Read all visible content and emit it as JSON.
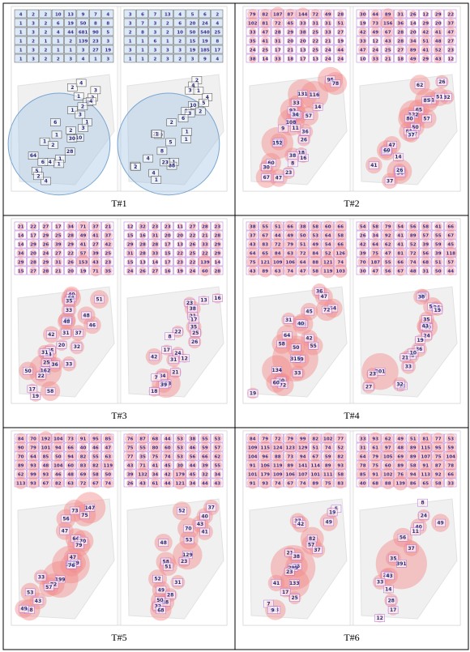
{
  "panels": [
    {
      "caption": "T#1",
      "color": "#9fc3e6",
      "maps": [
        {
          "table": [
            [
              4,
              2,
              2,
              10,
              13,
              9,
              7,
              4
            ],
            [
              1,
              3,
              2,
              6,
              19,
              50,
              8,
              8
            ],
            [
              1,
              3,
              2,
              4,
              44,
              681,
              90,
              5
            ],
            [
              1,
              2,
              1,
              1,
              2,
              139,
              23,
              3
            ],
            [
              1,
              3,
              2,
              1,
              1,
              3,
              27,
              19
            ],
            [
              1,
              3,
              2,
              2,
              3,
              4,
              1,
              3
            ]
          ],
          "labels": [
            2,
            4,
            3,
            1,
            2,
            8,
            4,
            1,
            2,
            3,
            1,
            6,
            3,
            2,
            10,
            1,
            30,
            1,
            2,
            28,
            1,
            64,
            4,
            6,
            1,
            5,
            4,
            2
          ]
        },
        {
          "table": [
            [
              3,
              6,
              7,
              13,
              4,
              5,
              6,
              2
            ],
            [
              3,
              7,
              3,
              2,
              6,
              20,
              24,
              4
            ],
            [
              2,
              8,
              3,
              2,
              10,
              50,
              540,
              25
            ],
            [
              1,
              1,
              6,
              1,
              2,
              15,
              19,
              8
            ],
            [
              3,
              1,
              3,
              3,
              3,
              19,
              185,
              17
            ],
            [
              1,
              1,
              2,
              3,
              2,
              3,
              9,
              4
            ]
          ],
          "labels": [
            2,
            4,
            3,
            1,
            4,
            5,
            10,
            1,
            2,
            3,
            6,
            2,
            1,
            30,
            28,
            1,
            1,
            5,
            8,
            4,
            1,
            88,
            23,
            5,
            2,
            4,
            1
          ]
        }
      ]
    },
    {
      "caption": "T#2",
      "color": "#f58a8a",
      "maps": [
        {
          "table": [
            [
              79,
              82,
              187,
              87,
              144,
              72,
              49,
              28
            ],
            [
              102,
              81,
              72,
              45,
              33,
              31,
              31,
              51
            ],
            [
              33,
              47,
              28,
              29,
              38,
              25,
              33,
              27
            ],
            [
              35,
              41,
              31,
              20,
              20,
              22,
              21,
              19
            ],
            [
              24,
              25,
              17,
              21,
              13,
              25,
              24,
              44
            ],
            [
              38,
              14,
              33,
              18,
              17,
              13,
              24,
              24
            ]
          ],
          "labels": [
            95,
            78,
            116,
            131,
            33,
            14,
            92,
            62,
            57,
            34,
            108,
            9,
            36,
            11,
            44,
            152,
            26,
            18,
            16,
            38,
            60,
            8,
            30,
            23,
            67,
            47
          ]
        },
        {
          "table": [
            [
              30,
              44,
              89,
              31,
              26,
              12,
              29,
              22
            ],
            [
              19,
              73,
              156,
              36,
              14,
              29,
              20,
              37
            ],
            [
              42,
              49,
              67,
              28,
              20,
              42,
              41,
              47
            ],
            [
              33,
              12,
              43,
              28,
              34,
              51,
              48,
              27
            ],
            [
              47,
              24,
              25,
              27,
              89,
              41,
              52,
              23
            ],
            [
              10,
              33,
              21,
              18,
              49,
              29,
              43,
              12
            ]
          ],
          "labels": [
            26,
            62,
            32,
            41,
            51,
            85,
            65,
            57,
            122,
            80,
            50,
            61,
            17,
            37,
            47,
            30,
            60,
            14,
            41,
            93,
            36,
            26,
            37
          ]
        }
      ]
    },
    {
      "caption": "T#3",
      "color": "#f58a8a",
      "maps": [
        {
          "table": [
            [
              21,
              22,
              27,
              17,
              34,
              71,
              37,
              21
            ],
            [
              14,
              17,
              29,
              25,
              28,
              49,
              41,
              37
            ],
            [
              14,
              29,
              26,
              39,
              29,
              41,
              27,
              42
            ],
            [
              34,
              20,
              24,
              27,
              22,
              57,
              39,
              25
            ],
            [
              29,
              28,
              29,
              31,
              26,
              153,
              43,
              23
            ],
            [
              15,
              27,
              28,
              21,
              20,
              19,
              71,
              35
            ]
          ],
          "labels": [
            51,
            40,
            58,
            35,
            48,
            33,
            45,
            48,
            46,
            37,
            31,
            42,
            32,
            25,
            20,
            44,
            31,
            25,
            36,
            33,
            162,
            50,
            22,
            17,
            58,
            19
          ]
        },
        {
          "table": [
            [
              12,
              32,
              23,
              23,
              11,
              27,
              28,
              23
            ],
            [
              15,
              16,
              31,
              20,
              20,
              22,
              21,
              28
            ],
            [
              29,
              28,
              28,
              17,
              13,
              26,
              33,
              29
            ],
            [
              31,
              28,
              33,
              15,
              22,
              25,
              22,
              29
            ],
            [
              15,
              13,
              14,
              17,
              23,
              22,
              139,
              14
            ],
            [
              24,
              26,
              27,
              16,
              19,
              24,
              60,
              28
            ]
          ],
          "labels": [
            16,
            13,
            23,
            38,
            21,
            17,
            35,
            25,
            22,
            26,
            8,
            17,
            24,
            12,
            42,
            31,
            21,
            34,
            7,
            123,
            39,
            18
          ]
        }
      ]
    },
    {
      "caption": "T#4",
      "color": "#f58a8a",
      "maps": [
        {
          "table": [
            [
              38,
              55,
              51,
              66,
              38,
              58,
              60,
              66
            ],
            [
              37,
              67,
              44,
              49,
              50,
              53,
              64,
              58
            ],
            [
              43,
              83,
              72,
              79,
              51,
              49,
              54,
              66
            ],
            [
              64,
              65,
              84,
              63,
              72,
              84,
              52,
              126
            ],
            [
              75,
              121,
              109,
              106,
              64,
              88,
              121,
              74
            ],
            [
              43,
              89,
              63,
              74,
              47,
              58,
              119,
              103
            ]
          ],
          "labels": [
            36,
            47,
            54,
            45,
            72,
            65,
            31,
            40,
            42,
            64,
            55,
            58,
            50,
            49,
            315,
            134,
            33,
            40,
            72,
            60,
            19
          ]
        },
        {
          "table": [
            [
              54,
              58,
              79,
              54,
              56,
              58,
              41,
              66
            ],
            [
              26,
              34,
              92,
              41,
              89,
              57,
              55,
              67
            ],
            [
              42,
              64,
              62,
              41,
              52,
              39,
              59,
              45
            ],
            [
              39,
              75,
              47,
              81,
              72,
              56,
              39,
              118
            ],
            [
              70,
              187,
              55,
              66,
              74,
              68,
              51,
              57
            ],
            [
              30,
              47,
              56,
              67,
              48,
              31,
              50,
              44
            ]
          ],
          "labels": [
            27,
            38,
            51,
            24,
            19,
            35,
            60,
            43,
            24,
            19,
            36,
            38,
            10,
            21,
            201,
            33,
            23,
            13,
            32,
            27
          ]
        }
      ]
    },
    {
      "caption": "T#5",
      "color": "#f58a8a",
      "maps": [
        {
          "table": [
            [
              84,
              70,
              192,
              104,
              73,
              91,
              95,
              85
            ],
            [
              90,
              79,
              101,
              94,
              66,
              40,
              46,
              47
            ],
            [
              70,
              64,
              85,
              50,
              94,
              82,
              55,
              63
            ],
            [
              89,
              93,
              48,
              104,
              60,
              83,
              82,
              119
            ],
            [
              62,
              99,
              93,
              46,
              48,
              69,
              58,
              50
            ],
            [
              113,
              93,
              67,
              82,
              63,
              72,
              67,
              74
            ]
          ],
          "labels": [
            147,
            73,
            75,
            56,
            47,
            64,
            70,
            79,
            47,
            59,
            212,
            76,
            33,
            199,
            72,
            57,
            53,
            43,
            68,
            49
          ]
        },
        {
          "table": [
            [
              76,
              87,
              68,
              44,
              53,
              38,
              55,
              53
            ],
            [
              75,
              55,
              80,
              60,
              53,
              46,
              59,
              57
            ],
            [
              77,
              35,
              75,
              74,
              53,
              56,
              66,
              62
            ],
            [
              43,
              71,
              41,
              45,
              30,
              44,
              39,
              55
            ],
            [
              39,
              132,
              34,
              42,
              179,
              45,
              32,
              34
            ],
            [
              26,
              43,
              61,
              44,
              121,
              34,
              44,
              43
            ]
          ],
          "labels": [
            52,
            37,
            40,
            70,
            43,
            41,
            53,
            48,
            129,
            58,
            23,
            51,
            52,
            31,
            49,
            28,
            48,
            50,
            32,
            68
          ]
        }
      ]
    },
    {
      "caption": "T#6",
      "color": "#f58a8a",
      "maps": [
        {
          "table": [
            [
              84,
              79,
              72,
              79,
              99,
              82,
              102,
              77
            ],
            [
              109,
              115,
              124,
              123,
              129,
              51,
              74,
              52
            ],
            [
              104,
              96,
              88,
              73,
              94,
              67,
              59,
              82
            ],
            [
              91,
              106,
              119,
              89,
              141,
              114,
              89,
              93
            ],
            [
              101,
              179,
              109,
              106,
              107,
              101,
              111,
              58
            ],
            [
              91,
              93,
              74,
              67,
              74,
              89,
              75,
              83
            ]
          ],
          "labels": [
            5,
            19,
            49,
            37,
            42,
            82,
            57,
            37,
            21,
            38,
            75,
            299,
            23,
            133,
            41,
            17,
            25,
            7,
            63,
            9
          ]
        },
        {
          "table": [
            [
              33,
              93,
              62,
              49,
              51,
              81,
              77,
              53
            ],
            [
              31,
              61,
              97,
              48,
              89,
              115,
              95,
              59
            ],
            [
              64,
              79,
              105,
              69,
              89,
              107,
              75,
              104
            ],
            [
              78,
              75,
              60,
              89,
              58,
              91,
              87,
              78
            ],
            [
              85,
              91,
              102,
              76,
              94,
              113,
              92,
              66
            ],
            [
              40,
              68,
              88,
              139,
              86,
              65,
              58,
              33
            ]
          ],
          "labels": [
            8,
            24,
            49,
            40,
            11,
            56,
            37,
            35,
            391,
            26,
            43,
            33,
            14,
            28,
            17,
            12
          ]
        }
      ]
    }
  ]
}
